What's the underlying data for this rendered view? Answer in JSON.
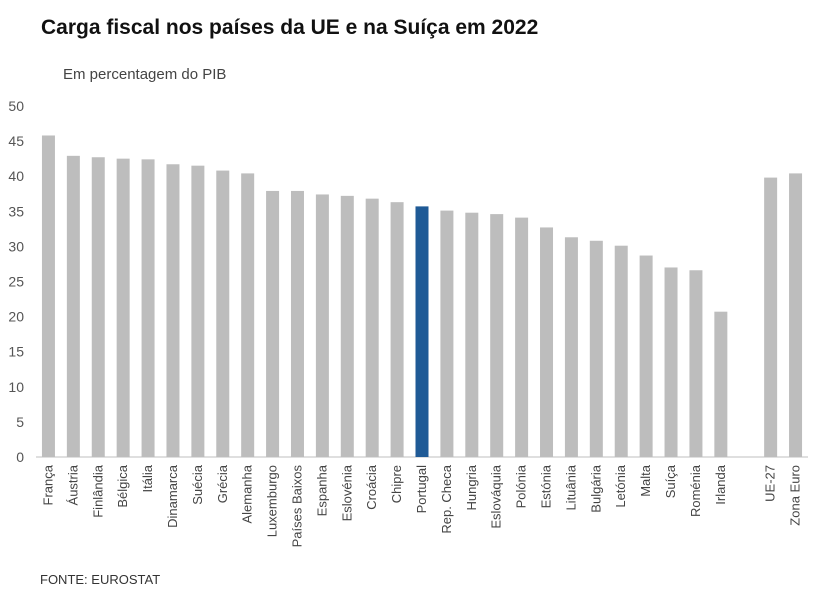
{
  "header": {
    "title": "Carga fiscal nos países da UE e na Suíça em 2022",
    "subtitle": "Em percentagem do PIB"
  },
  "footer": {
    "source": "FONTE: EUROSTAT"
  },
  "colors": {
    "default_bar": "#bdbdbd",
    "highlight_bar": "#1f5a96"
  },
  "chart_data": {
    "type": "bar",
    "title": "Carga fiscal nos países da UE e na Suíça em 2022",
    "subtitle": "Em percentagem do PIB",
    "ylim": [
      0,
      50
    ],
    "yticks": [
      0,
      5,
      10,
      15,
      20,
      25,
      30,
      35,
      40,
      45,
      50
    ],
    "grid": false,
    "highlight": "Portugal",
    "categories": [
      "França",
      "Áustria",
      "Finlândia",
      "Bélgica",
      "Itália",
      "Dinamarca",
      "Suécia",
      "Grécia",
      "Alemanha",
      "Luxemburgo",
      "Países Baixos",
      "Espanha",
      "Eslovénia",
      "Croácia",
      "Chipre",
      "Portugal",
      "Rep. Checa",
      "Hungria",
      "Eslováquia",
      "Polónia",
      "Estónia",
      "Lituânia",
      "Bulgária",
      "Letónia",
      "Malta",
      "Suíça",
      "Roménia",
      "Irlanda",
      "",
      "UE-27",
      "Zona Euro"
    ],
    "values": [
      45.8,
      42.9,
      42.7,
      42.5,
      42.4,
      41.7,
      41.5,
      40.8,
      40.4,
      37.9,
      37.9,
      37.4,
      37.2,
      36.8,
      36.3,
      35.7,
      35.1,
      34.8,
      34.6,
      34.1,
      32.7,
      31.3,
      30.8,
      30.1,
      28.7,
      27.0,
      26.6,
      20.7,
      null,
      39.8,
      40.4
    ]
  }
}
